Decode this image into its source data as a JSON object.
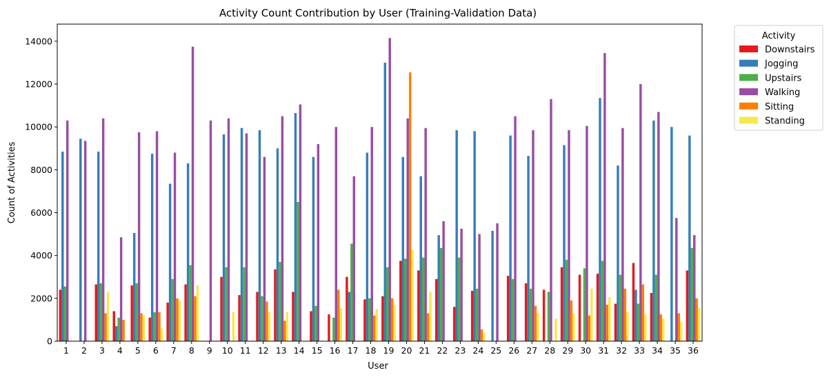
{
  "chart_data": {
    "type": "bar",
    "title": "Activity Count Contribution by User (Training-Validation Data)",
    "xlabel": "User",
    "ylabel": "Count of Activities",
    "ylim": [
      0,
      14800
    ],
    "yticks": [
      0,
      2000,
      4000,
      6000,
      8000,
      10000,
      12000,
      14000
    ],
    "grid": false,
    "legend_title": "Activity",
    "legend_position": "outside-top-right",
    "categories": [
      "1",
      "2",
      "3",
      "4",
      "5",
      "6",
      "7",
      "8",
      "9",
      "10",
      "11",
      "12",
      "13",
      "14",
      "15",
      "16",
      "17",
      "18",
      "19",
      "20",
      "21",
      "22",
      "23",
      "24",
      "25",
      "26",
      "27",
      "28",
      "29",
      "30",
      "31",
      "32",
      "33",
      "34",
      "35",
      "36"
    ],
    "series": [
      {
        "name": "Downstairs",
        "color": "#e41a1c",
        "values": [
          2400,
          0,
          2650,
          1400,
          2600,
          1100,
          1800,
          2650,
          0,
          3000,
          2150,
          2300,
          3350,
          2300,
          1400,
          1250,
          3000,
          1950,
          2100,
          3750,
          3300,
          2900,
          1600,
          2350,
          0,
          3050,
          2700,
          2400,
          3450,
          3100,
          3150,
          1750,
          3650,
          2250,
          0,
          3300
        ]
      },
      {
        "name": "Jogging",
        "color": "#377eb8",
        "values": [
          8850,
          9450,
          8850,
          700,
          5050,
          8750,
          7350,
          8300,
          0,
          9650,
          9950,
          9850,
          9000,
          10650,
          8600,
          0,
          2300,
          8800,
          13000,
          8600,
          7700,
          4950,
          9850,
          9800,
          5150,
          9600,
          8650,
          0,
          9150,
          0,
          11350,
          8200,
          2400,
          10300,
          10000,
          9600
        ]
      },
      {
        "name": "Upstairs",
        "color": "#4daf4a",
        "values": [
          2550,
          0,
          2700,
          1100,
          2700,
          1350,
          2900,
          3550,
          0,
          3450,
          3450,
          2100,
          3700,
          6500,
          1650,
          1100,
          4550,
          2000,
          3450,
          3850,
          3900,
          4350,
          3900,
          2450,
          0,
          2900,
          2450,
          2300,
          3800,
          3400,
          3750,
          3100,
          1750,
          3100,
          0,
          4350
        ]
      },
      {
        "name": "Walking",
        "color": "#984ea3",
        "values": [
          10300,
          9350,
          10400,
          4850,
          9750,
          9800,
          8800,
          13750,
          10300,
          10400,
          9700,
          8600,
          10500,
          11050,
          9200,
          10000,
          7700,
          10000,
          14150,
          10400,
          9950,
          5600,
          5250,
          5000,
          5500,
          10500,
          9850,
          11300,
          9850,
          10050,
          13450,
          9950,
          12000,
          10700,
          5750,
          4950
        ]
      },
      {
        "name": "Sitting",
        "color": "#ff7f00",
        "values": [
          0,
          0,
          1300,
          1000,
          1300,
          1350,
          2000,
          2100,
          0,
          0,
          0,
          1850,
          950,
          0,
          0,
          2400,
          0,
          1200,
          2000,
          12550,
          1300,
          0,
          0,
          550,
          0,
          0,
          1650,
          0,
          1900,
          1200,
          1700,
          2450,
          2650,
          1250,
          1300,
          2000
        ]
      },
      {
        "name": "Standing",
        "color": "#f6e84c",
        "values": [
          0,
          0,
          2300,
          0,
          1200,
          600,
          1900,
          2600,
          0,
          1350,
          0,
          1350,
          1350,
          0,
          0,
          1550,
          0,
          1500,
          1700,
          4250,
          2300,
          0,
          0,
          400,
          0,
          0,
          1300,
          1050,
          1300,
          2450,
          2050,
          1350,
          1250,
          1050,
          900,
          1550
        ]
      }
    ]
  }
}
